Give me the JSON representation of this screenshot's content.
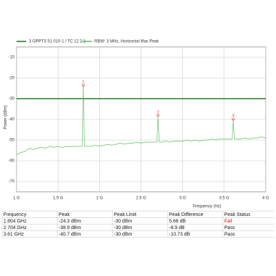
{
  "chart_data": {
    "type": "line",
    "xlabel": "Frequency (Hz)",
    "ylabel": "Power (dBm)",
    "xlim": [
      1,
      4
    ],
    "xticks": [
      {
        "value": 1,
        "label": "1 G"
      },
      {
        "value": 1.5,
        "label": "1.5 G"
      },
      {
        "value": 2,
        "label": "2 G"
      },
      {
        "value": 2.5,
        "label": "2.5 G"
      },
      {
        "value": 3,
        "label": "3 G"
      },
      {
        "value": 3.5,
        "label": "3.5 G"
      },
      {
        "value": 4,
        "label": "4 G"
      }
    ],
    "ylim": [
      -75,
      -5
    ],
    "yticks": [
      -10,
      -20,
      -30,
      -40,
      -50,
      -60,
      -70
    ],
    "grid": true,
    "series": [
      {
        "name": "3 GPPTS 51 010-1 / TC 12 2 1",
        "color": "#1a7a1a",
        "width": 1.6,
        "x": [
          1,
          4
        ],
        "values": [
          -30,
          -30
        ]
      },
      {
        "name": "RBW: 3 MHz, Horizontal Max Peak",
        "color": "#5cbf5c",
        "width": 0.7,
        "x": [
          1.0,
          1.05,
          1.1,
          1.15,
          1.2,
          1.25,
          1.3,
          1.35,
          1.4,
          1.45,
          1.5,
          1.55,
          1.6,
          1.65,
          1.7,
          1.75,
          1.79,
          1.804,
          1.818,
          1.85,
          1.9,
          1.95,
          2.0,
          2.05,
          2.1,
          2.15,
          2.2,
          2.25,
          2.3,
          2.35,
          2.4,
          2.45,
          2.5,
          2.55,
          2.6,
          2.65,
          2.69,
          2.704,
          2.718,
          2.75,
          2.8,
          2.85,
          2.9,
          2.95,
          3.0,
          3.05,
          3.1,
          3.15,
          3.2,
          3.25,
          3.3,
          3.35,
          3.4,
          3.45,
          3.5,
          3.55,
          3.596,
          3.61,
          3.624,
          3.65,
          3.7,
          3.75,
          3.8,
          3.85,
          3.9,
          3.95,
          4.0
        ],
        "values": [
          -57,
          -56,
          -55.5,
          -54,
          -54.5,
          -54,
          -53.5,
          -54,
          -53,
          -53.5,
          -53,
          -53.5,
          -53,
          -53.2,
          -53,
          -53,
          -53,
          -24.3,
          -53,
          -53,
          -53,
          -52.5,
          -53,
          -52.5,
          -52,
          -52.5,
          -52,
          -51.5,
          -52,
          -51.5,
          -51.5,
          -51,
          -51.5,
          -51,
          -51,
          -51,
          -51,
          -38.9,
          -51,
          -51,
          -50.5,
          -51,
          -50.5,
          -50.5,
          -50.5,
          -50,
          -50.5,
          -50,
          -50.5,
          -50,
          -50,
          -49.5,
          -50,
          -49.5,
          -49.5,
          -49.5,
          -49.5,
          -40.7,
          -49.5,
          -49.5,
          -49.5,
          -49,
          -49.5,
          -49,
          -49,
          -48.5,
          -49
        ]
      }
    ],
    "markers": [
      {
        "label": "1",
        "x": 1.804,
        "y": -24.3
      },
      {
        "label": "2",
        "x": 2.704,
        "y": -38.9
      },
      {
        "label": "3",
        "x": 3.61,
        "y": -40.7
      }
    ],
    "marker_color": "#e03030"
  },
  "table": {
    "header": [
      "Frequency",
      "Peak",
      "Peak Limit",
      "Peak Difference",
      "Peak Status"
    ],
    "rows": [
      [
        "1.804 GHz",
        "-24.3 dBm",
        "-30 dBm",
        "5.68 dB",
        "Fail"
      ],
      [
        "2.704 GHz",
        "-38.9 dBm",
        "-30 dBm",
        "-8.9 dB",
        "Pass"
      ],
      [
        "3.61 GHz",
        "-40.7 dBm",
        "-30 dBm",
        "-10.73 dB",
        "Pass"
      ]
    ],
    "status_colors": [
      "#e00000",
      "#111111",
      "#111111"
    ]
  }
}
